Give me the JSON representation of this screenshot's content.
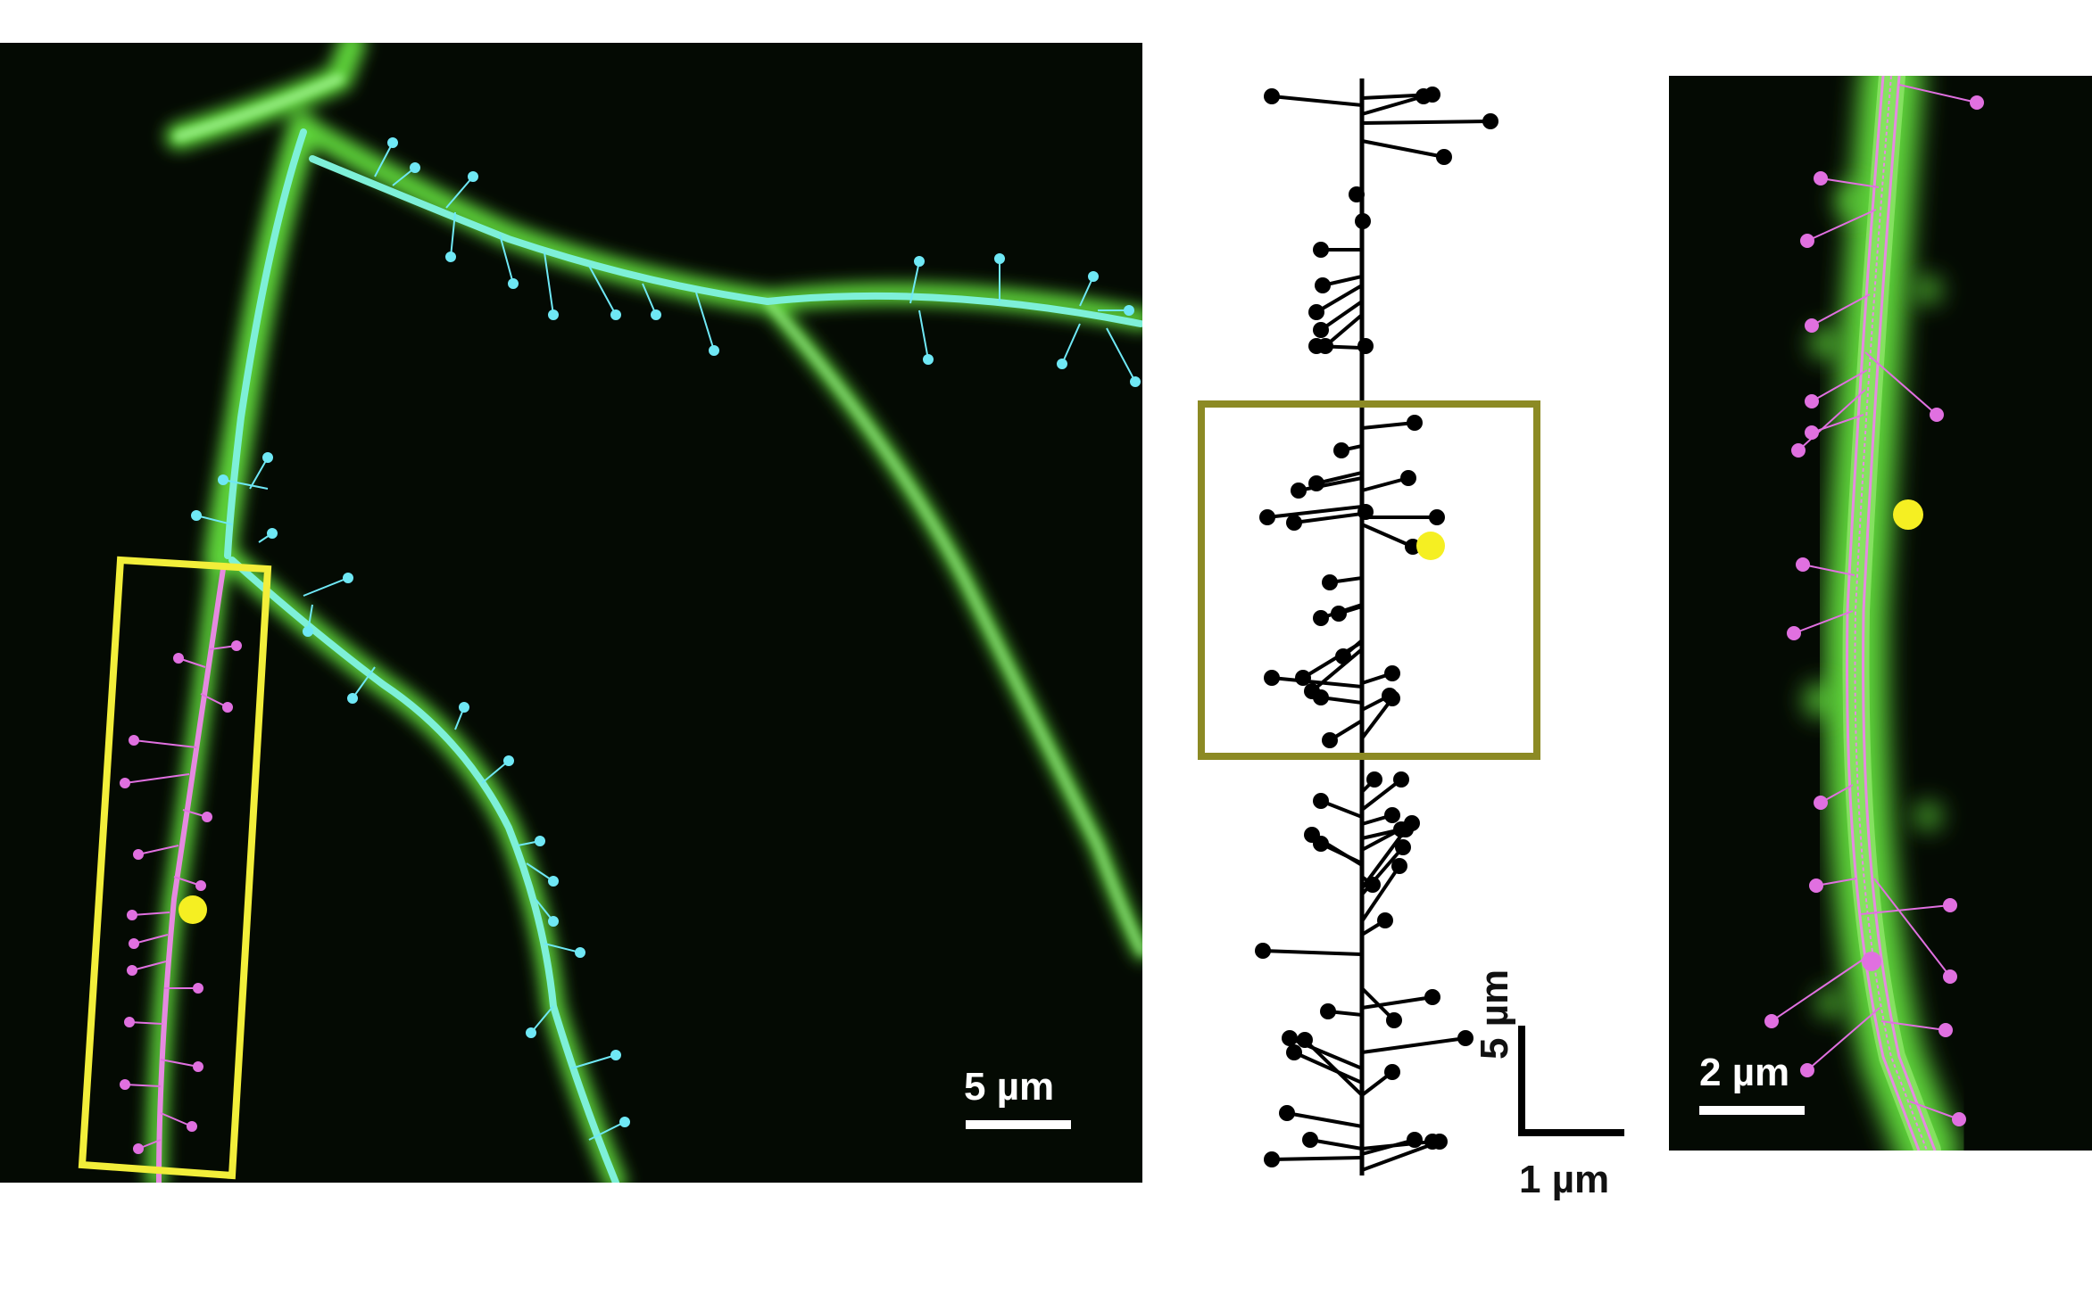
{
  "figure": {
    "panel_left": {
      "scale_bar_label": "5 µm",
      "dendrite_color": "#7ef0d8",
      "spine_color_upper": "#6fe8f5",
      "spine_color_selected": "#e070e0",
      "glow_color": "#5fd63a",
      "selection_box_color": "#f2ee3a",
      "marker_color": "#f5ef22"
    },
    "panel_middle": {
      "horizontal_scale_label": "1 µm",
      "vertical_scale_label": "5 µm",
      "line_color": "#000000",
      "box_color": "#8c8a24",
      "marker_color": "#f5ef22"
    },
    "panel_right": {
      "scale_bar_label": "2 µm",
      "dendrite_color": "#e58ae0",
      "spine_color": "#e070e0",
      "glow_color": "#5fd63a",
      "marker_color": "#f5ef22"
    }
  }
}
